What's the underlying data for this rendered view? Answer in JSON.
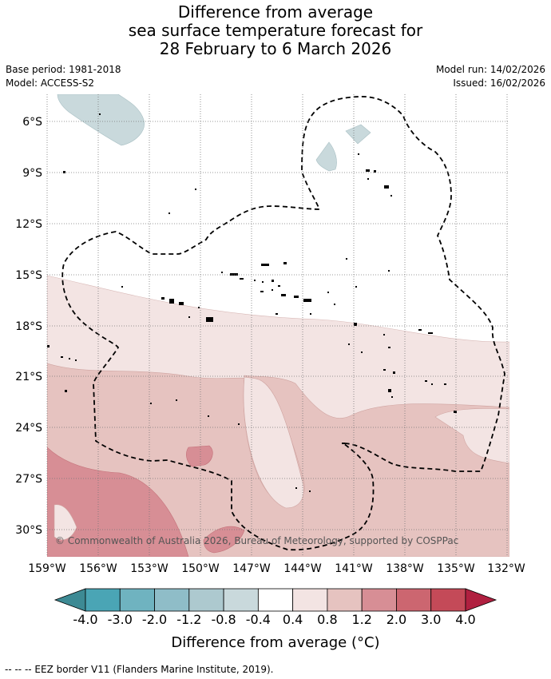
{
  "title": {
    "line1": "Difference from average",
    "line2": "sea surface temperature forecast for",
    "line3": "28 February to 6 March 2026"
  },
  "meta": {
    "base_period": "Base period: 1981-2018",
    "model": "Model: ACCESS-S2",
    "model_run": "Model run: 14/02/2026",
    "issued": "Issued: 16/02/2026"
  },
  "map": {
    "lat_ticks": [
      "6°S",
      "9°S",
      "12°S",
      "15°S",
      "18°S",
      "21°S",
      "24°S",
      "27°S",
      "30°S"
    ],
    "lon_ticks": [
      "159°W",
      "156°W",
      "153°W",
      "150°W",
      "147°W",
      "144°W",
      "141°W",
      "138°W",
      "135°W",
      "132°W"
    ],
    "copyright": "© Commonwealth of Australia 2026, Bureau of Meteorology, supported by COSPPac",
    "extent": {
      "lon_min": -159,
      "lon_max": -132,
      "lat_min": -31.6,
      "lat_max": -4.5
    }
  },
  "colorbar": {
    "labels": [
      "-4.0",
      "-3.0",
      "-2.0",
      "-1.2",
      "-0.8",
      "-0.4",
      "0.4",
      "0.8",
      "1.2",
      "2.0",
      "3.0",
      "4.0"
    ],
    "colors": [
      "#3d8a94",
      "#4aa5b5",
      "#6fb3c0",
      "#8fbdc8",
      "#adc9cf",
      "#c9d9dc",
      "#ffffff",
      "#f3e4e3",
      "#e6c3c0",
      "#d78e95",
      "#cc6670",
      "#c44a58",
      "#b02040"
    ],
    "title": "Difference from average (°C)"
  },
  "footnote": "--  --  -- EEZ border V11 (Flanders Marine Institute, 2019).",
  "colors": {
    "cool_light": "#c9d9dc",
    "warm_lightest": "#f3e4e3",
    "warm_light": "#e6c3c0",
    "warm_mid": "#d78e95",
    "grid": "#777777"
  }
}
